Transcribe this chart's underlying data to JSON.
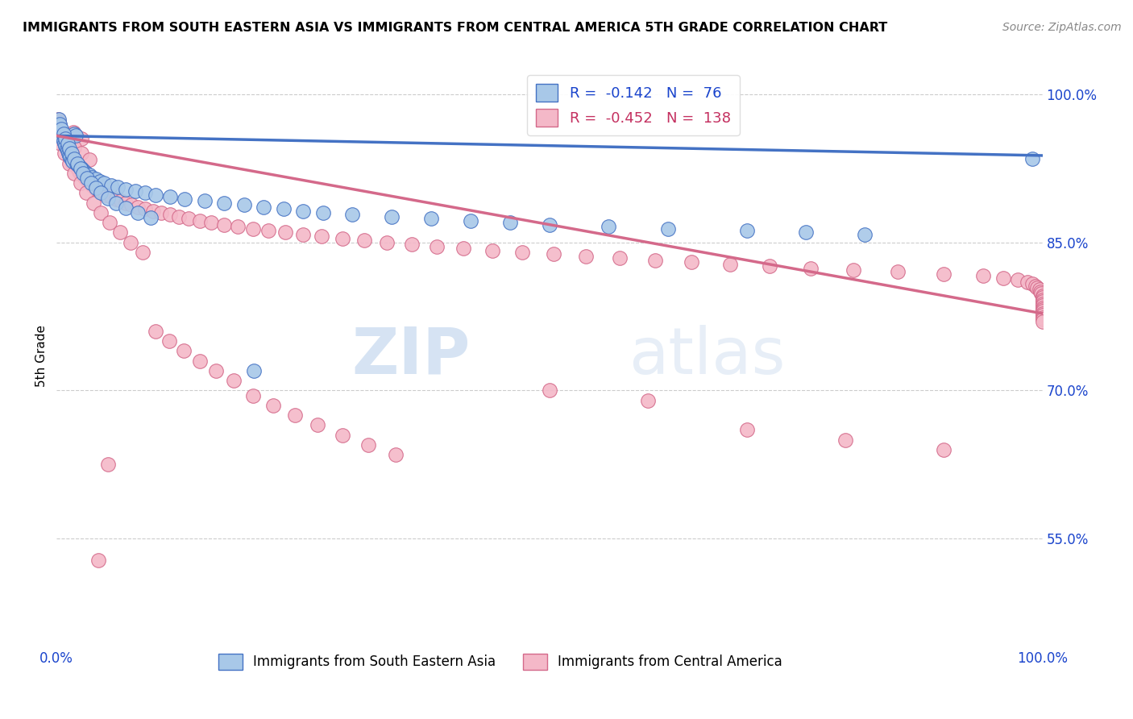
{
  "title": "IMMIGRANTS FROM SOUTH EASTERN ASIA VS IMMIGRANTS FROM CENTRAL AMERICA 5TH GRADE CORRELATION CHART",
  "source": "Source: ZipAtlas.com",
  "ylabel": "5th Grade",
  "ytick_labels": [
    "100.0%",
    "85.0%",
    "70.0%",
    "55.0%"
  ],
  "ytick_values": [
    1.0,
    0.85,
    0.7,
    0.55
  ],
  "legend_blue_r": "-0.142",
  "legend_blue_n": "76",
  "legend_pink_r": "-0.452",
  "legend_pink_n": "138",
  "legend_label_blue": "Immigrants from South Eastern Asia",
  "legend_label_pink": "Immigrants from Central America",
  "blue_color": "#a8c8e8",
  "pink_color": "#f4b8c8",
  "blue_edge_color": "#4472c4",
  "pink_edge_color": "#d4698a",
  "blue_line_color": "#4472c4",
  "pink_line_color": "#d4698a",
  "blue_scatter_x": [
    0.002,
    0.003,
    0.004,
    0.005,
    0.006,
    0.007,
    0.008,
    0.009,
    0.01,
    0.011,
    0.012,
    0.013,
    0.014,
    0.015,
    0.016,
    0.018,
    0.019,
    0.02,
    0.022,
    0.024,
    0.026,
    0.028,
    0.03,
    0.033,
    0.036,
    0.04,
    0.044,
    0.048,
    0.055,
    0.062,
    0.07,
    0.08,
    0.09,
    0.1,
    0.115,
    0.13,
    0.15,
    0.17,
    0.19,
    0.21,
    0.23,
    0.25,
    0.27,
    0.3,
    0.34,
    0.38,
    0.42,
    0.46,
    0.5,
    0.56,
    0.62,
    0.7,
    0.76,
    0.82,
    0.003,
    0.005,
    0.007,
    0.009,
    0.011,
    0.013,
    0.015,
    0.018,
    0.021,
    0.024,
    0.027,
    0.031,
    0.035,
    0.04,
    0.045,
    0.052,
    0.06,
    0.07,
    0.082,
    0.095,
    0.2,
    0.99
  ],
  "blue_scatter_y": [
    0.975,
    0.968,
    0.962,
    0.958,
    0.955,
    0.953,
    0.95,
    0.948,
    0.945,
    0.943,
    0.94,
    0.938,
    0.936,
    0.934,
    0.932,
    0.96,
    0.958,
    0.93,
    0.928,
    0.926,
    0.924,
    0.922,
    0.92,
    0.918,
    0.916,
    0.914,
    0.912,
    0.91,
    0.908,
    0.906,
    0.904,
    0.902,
    0.9,
    0.898,
    0.896,
    0.894,
    0.892,
    0.89,
    0.888,
    0.886,
    0.884,
    0.882,
    0.88,
    0.878,
    0.876,
    0.874,
    0.872,
    0.87,
    0.868,
    0.866,
    0.864,
    0.862,
    0.86,
    0.858,
    0.97,
    0.965,
    0.96,
    0.955,
    0.95,
    0.945,
    0.94,
    0.935,
    0.93,
    0.925,
    0.92,
    0.915,
    0.91,
    0.905,
    0.9,
    0.895,
    0.89,
    0.885,
    0.88,
    0.875,
    0.72,
    0.935
  ],
  "pink_scatter_x": [
    0.001,
    0.002,
    0.003,
    0.004,
    0.005,
    0.006,
    0.007,
    0.008,
    0.009,
    0.01,
    0.011,
    0.012,
    0.013,
    0.014,
    0.015,
    0.016,
    0.017,
    0.018,
    0.019,
    0.02,
    0.021,
    0.022,
    0.023,
    0.024,
    0.025,
    0.026,
    0.028,
    0.03,
    0.032,
    0.034,
    0.036,
    0.038,
    0.04,
    0.043,
    0.046,
    0.05,
    0.055,
    0.06,
    0.065,
    0.07,
    0.076,
    0.082,
    0.09,
    0.098,
    0.106,
    0.115,
    0.124,
    0.134,
    0.145,
    0.157,
    0.17,
    0.184,
    0.199,
    0.215,
    0.232,
    0.25,
    0.269,
    0.29,
    0.312,
    0.335,
    0.36,
    0.386,
    0.413,
    0.442,
    0.472,
    0.504,
    0.537,
    0.571,
    0.607,
    0.644,
    0.683,
    0.723,
    0.765,
    0.808,
    0.853,
    0.9,
    0.94,
    0.96,
    0.975,
    0.985,
    0.99,
    0.993,
    0.995,
    0.997,
    0.998,
    0.999,
    1.0,
    1.0,
    1.0,
    1.0,
    1.0,
    1.0,
    1.0,
    1.0,
    1.0,
    1.0,
    1.0,
    1.0,
    1.0,
    1.0,
    0.004,
    0.008,
    0.013,
    0.018,
    0.024,
    0.03,
    0.037,
    0.045,
    0.054,
    0.064,
    0.075,
    0.087,
    0.1,
    0.114,
    0.129,
    0.145,
    0.162,
    0.18,
    0.199,
    0.22,
    0.242,
    0.265,
    0.29,
    0.316,
    0.344,
    0.5,
    0.6,
    0.7,
    0.8,
    0.9,
    0.003,
    0.007,
    0.012,
    0.018,
    0.025,
    0.033,
    0.042,
    0.052
  ],
  "pink_scatter_y": [
    0.975,
    0.972,
    0.969,
    0.966,
    0.963,
    0.96,
    0.957,
    0.954,
    0.951,
    0.948,
    0.945,
    0.942,
    0.939,
    0.936,
    0.933,
    0.93,
    0.962,
    0.96,
    0.958,
    0.928,
    0.926,
    0.924,
    0.922,
    0.92,
    0.955,
    0.918,
    0.916,
    0.914,
    0.912,
    0.91,
    0.908,
    0.906,
    0.904,
    0.902,
    0.9,
    0.898,
    0.896,
    0.894,
    0.892,
    0.89,
    0.888,
    0.886,
    0.884,
    0.882,
    0.88,
    0.878,
    0.876,
    0.874,
    0.872,
    0.87,
    0.868,
    0.866,
    0.864,
    0.862,
    0.86,
    0.858,
    0.856,
    0.854,
    0.852,
    0.85,
    0.848,
    0.846,
    0.844,
    0.842,
    0.84,
    0.838,
    0.836,
    0.834,
    0.832,
    0.83,
    0.828,
    0.826,
    0.824,
    0.822,
    0.82,
    0.818,
    0.816,
    0.814,
    0.812,
    0.81,
    0.808,
    0.806,
    0.804,
    0.802,
    0.8,
    0.798,
    0.796,
    0.794,
    0.792,
    0.79,
    0.788,
    0.786,
    0.784,
    0.782,
    0.78,
    0.778,
    0.776,
    0.774,
    0.772,
    0.77,
    0.95,
    0.94,
    0.93,
    0.92,
    0.91,
    0.9,
    0.89,
    0.88,
    0.87,
    0.86,
    0.85,
    0.84,
    0.76,
    0.75,
    0.74,
    0.73,
    0.72,
    0.71,
    0.695,
    0.685,
    0.675,
    0.665,
    0.655,
    0.645,
    0.635,
    0.7,
    0.69,
    0.66,
    0.65,
    0.64,
    0.965,
    0.958,
    0.952,
    0.946,
    0.94,
    0.934,
    0.528,
    0.625
  ],
  "blue_trend_x": [
    0.0,
    1.0
  ],
  "blue_trend_y": [
    0.958,
    0.938
  ],
  "pink_trend_x": [
    0.0,
    1.0
  ],
  "pink_trend_y": [
    0.958,
    0.778
  ],
  "watermark_zip": "ZIP",
  "watermark_atlas": "atlas",
  "xlim": [
    0.0,
    1.0
  ],
  "ylim": [
    0.44,
    1.03
  ]
}
